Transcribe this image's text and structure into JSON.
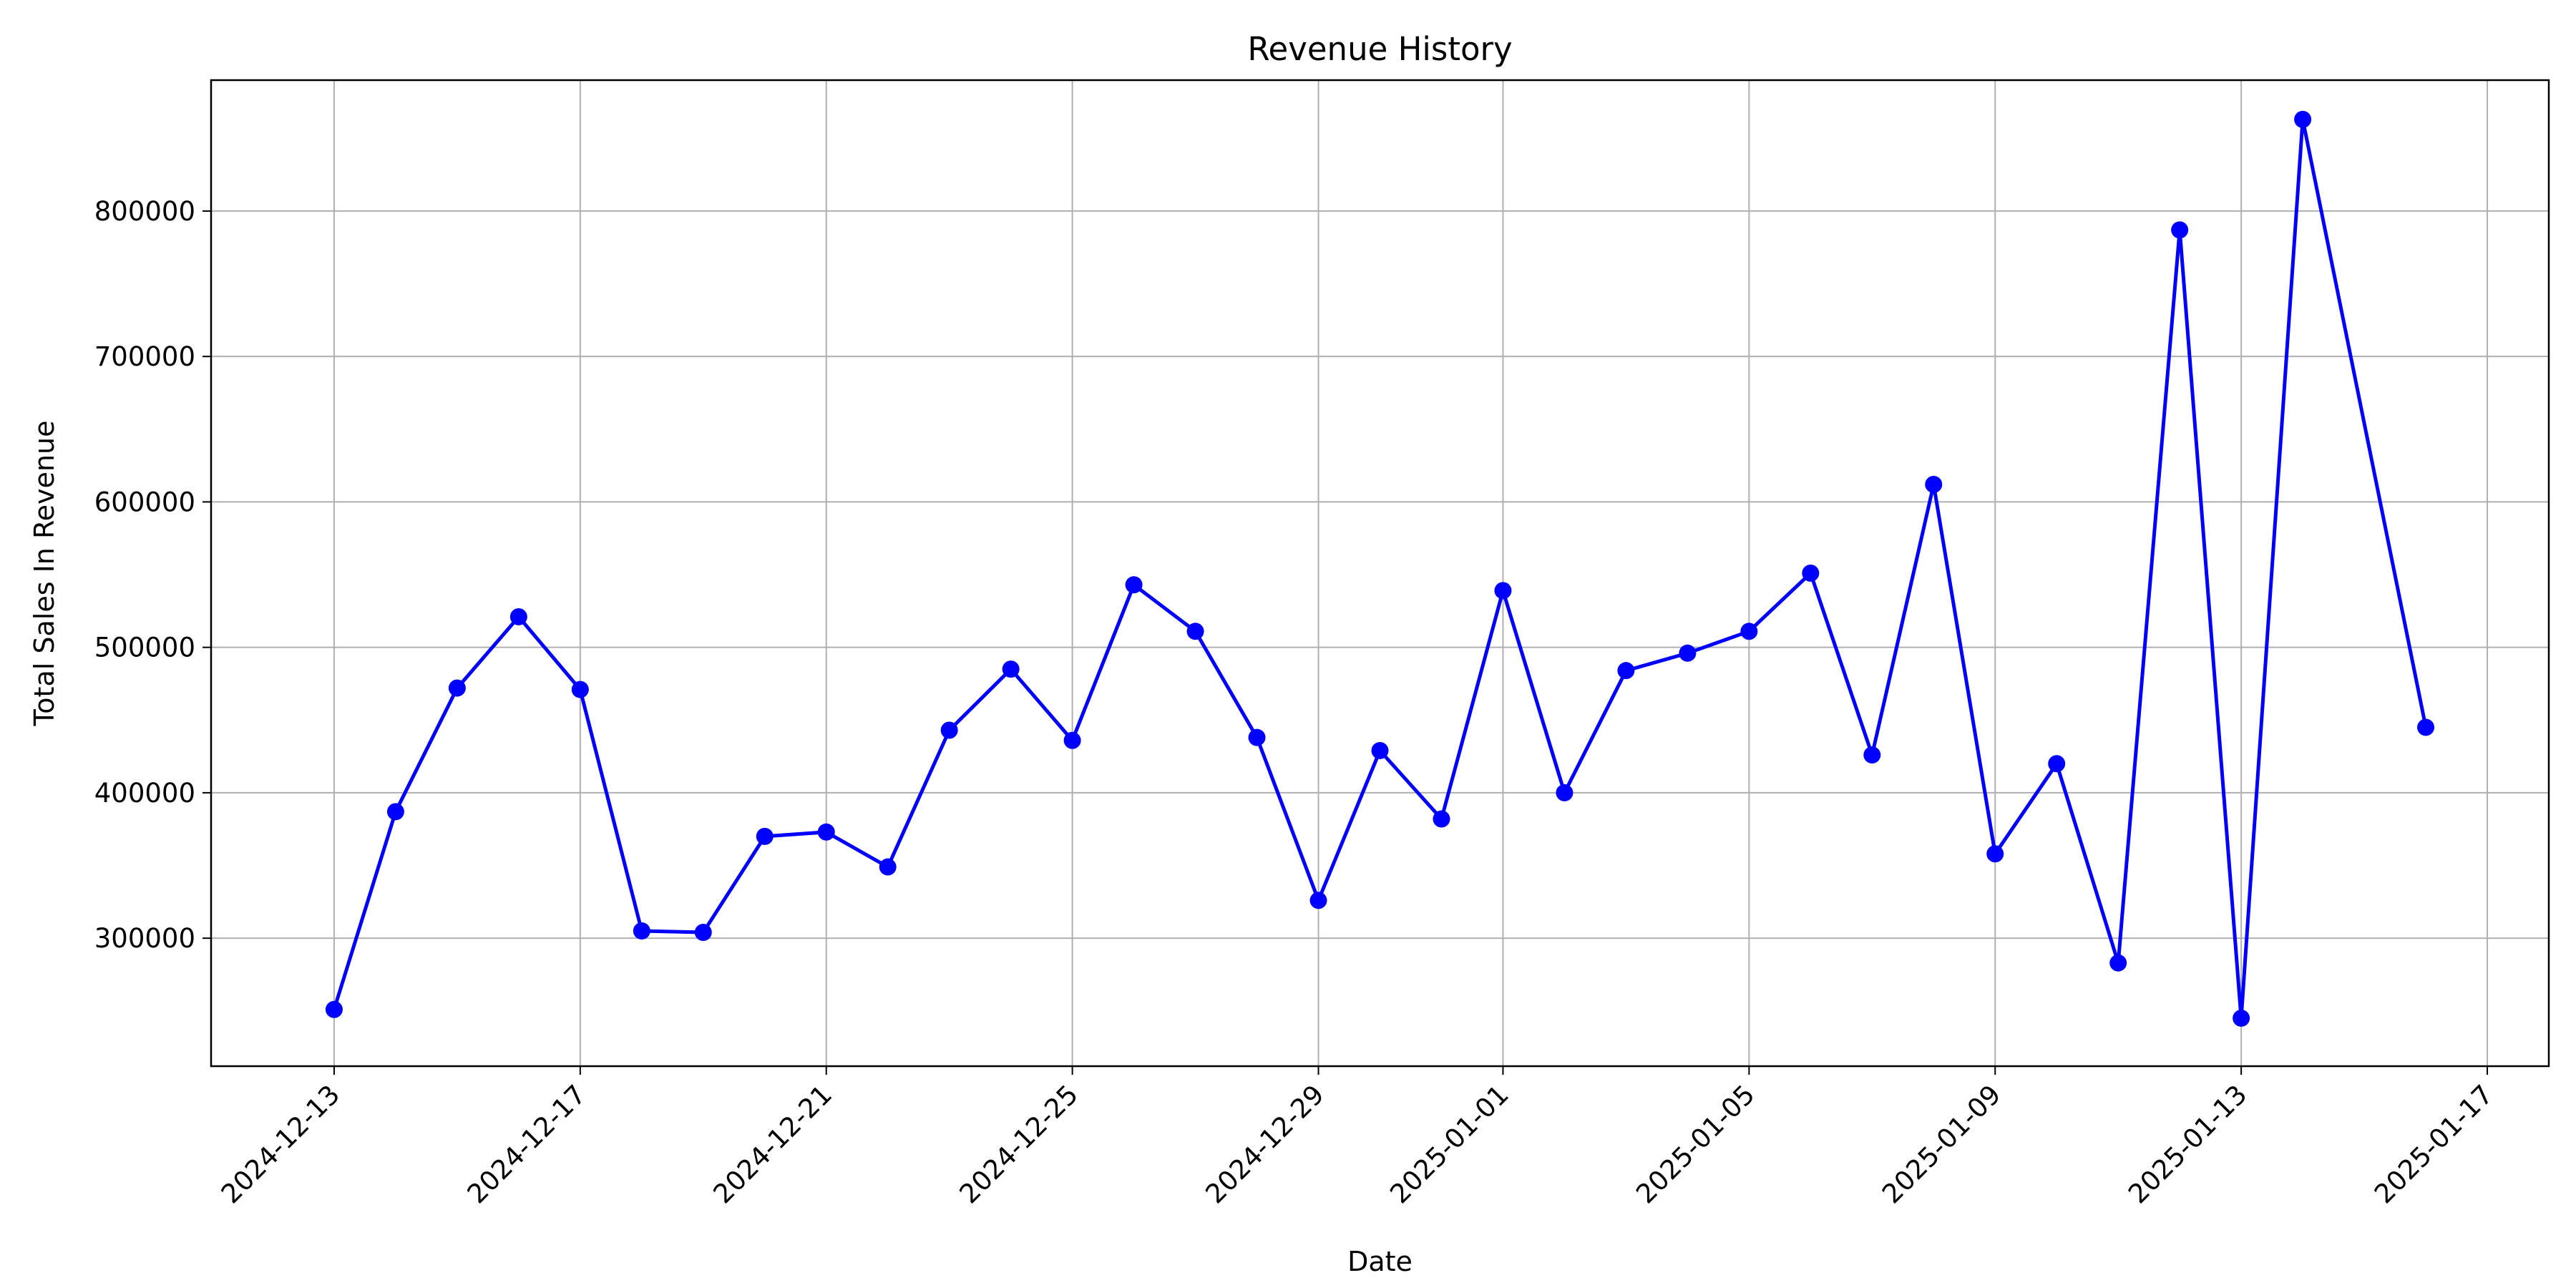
{
  "chart_data": {
    "type": "line",
    "title": "Revenue History",
    "xlabel": "Date",
    "ylabel": "Total Sales In Revenue",
    "xlim": [
      "2024-12-11",
      "2025-01-18"
    ],
    "ylim": [
      212000,
      890000
    ],
    "x_ticks": [
      "2024-12-13",
      "2024-12-17",
      "2024-12-21",
      "2024-12-25",
      "2024-12-29",
      "2025-01-01",
      "2025-01-05",
      "2025-01-09",
      "2025-01-13",
      "2025-01-17"
    ],
    "y_ticks": [
      300000,
      400000,
      500000,
      600000,
      700000,
      800000
    ],
    "grid": true,
    "line_color": "#0000ff",
    "marker": "circle",
    "series": [
      {
        "x": [
          "2024-12-13",
          "2024-12-14",
          "2024-12-15",
          "2024-12-16",
          "2024-12-17",
          "2024-12-18",
          "2024-12-19",
          "2024-12-20",
          "2024-12-21",
          "2024-12-22",
          "2024-12-23",
          "2024-12-24",
          "2024-12-25",
          "2024-12-26",
          "2024-12-27",
          "2024-12-28",
          "2024-12-29",
          "2024-12-30",
          "2024-12-31",
          "2025-01-01",
          "2025-01-02",
          "2025-01-03",
          "2025-01-04",
          "2025-01-05",
          "2025-01-06",
          "2025-01-07",
          "2025-01-08",
          "2025-01-09",
          "2025-01-10",
          "2025-01-11",
          "2025-01-12",
          "2025-01-13",
          "2025-01-14",
          "2025-01-16"
        ],
        "values": [
          251000,
          387000,
          472000,
          521000,
          471000,
          305000,
          304000,
          370000,
          373000,
          349000,
          443000,
          485000,
          436000,
          543000,
          511000,
          438000,
          326000,
          429000,
          382000,
          539000,
          400000,
          484000,
          496000,
          511000,
          551000,
          426000,
          612000,
          358000,
          420000,
          283000,
          787000,
          245000,
          863000,
          445000
        ]
      }
    ]
  }
}
